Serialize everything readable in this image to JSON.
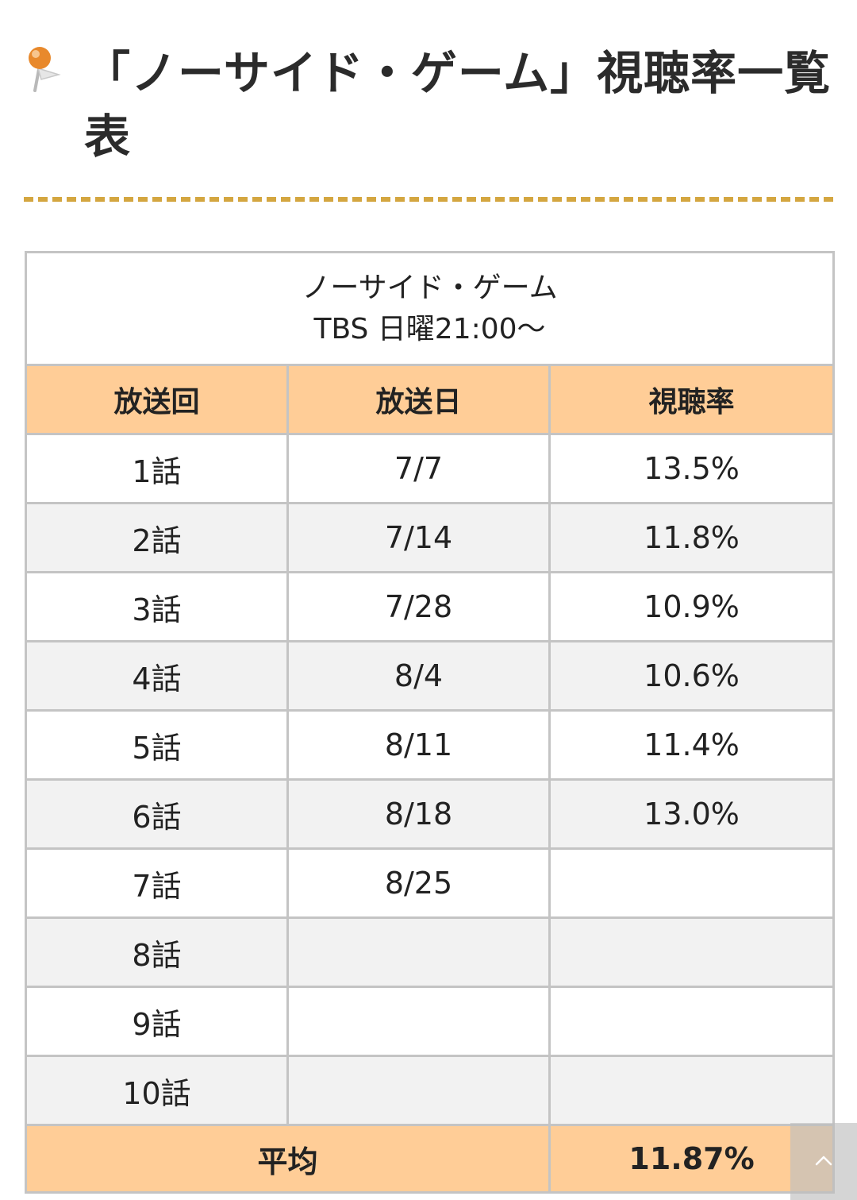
{
  "heading": {
    "title": "「ノーサイド・ゲーム」視聴率一覧表",
    "icon": "pushpin-icon",
    "rule_color": "#d4a640"
  },
  "table": {
    "caption": {
      "line1": "ノーサイド・ゲーム",
      "line2": "TBS 日曜21:00〜"
    },
    "columns": [
      "放送回",
      "放送日",
      "視聴率"
    ],
    "rows": [
      {
        "episode": "1話",
        "date": "7/7",
        "rating": "13.5%",
        "highlight": "high"
      },
      {
        "episode": "2話",
        "date": "7/14",
        "rating": "11.8%",
        "highlight": ""
      },
      {
        "episode": "3話",
        "date": "7/28",
        "rating": "10.9%",
        "highlight": ""
      },
      {
        "episode": "4話",
        "date": "8/4",
        "rating": "10.6%",
        "highlight": "low"
      },
      {
        "episode": "5話",
        "date": "8/11",
        "rating": "11.4%",
        "highlight": ""
      },
      {
        "episode": "6話",
        "date": "8/18",
        "rating": "13.0%",
        "highlight": ""
      },
      {
        "episode": "7話",
        "date": "8/25",
        "rating": "",
        "highlight": ""
      },
      {
        "episode": "8話",
        "date": "",
        "rating": "",
        "highlight": ""
      },
      {
        "episode": "9話",
        "date": "",
        "rating": "",
        "highlight": ""
      },
      {
        "episode": "10話",
        "date": "",
        "rating": "",
        "highlight": ""
      }
    ],
    "average": {
      "label": "平均",
      "value": "11.87%"
    },
    "colors": {
      "header_bg": "#ffcd97",
      "high_rating": "#e01b1b",
      "low_rating": "#1414d4",
      "stripe": "#f2f2f2"
    }
  },
  "scroll_top": {
    "icon": "chevron-up-icon"
  }
}
